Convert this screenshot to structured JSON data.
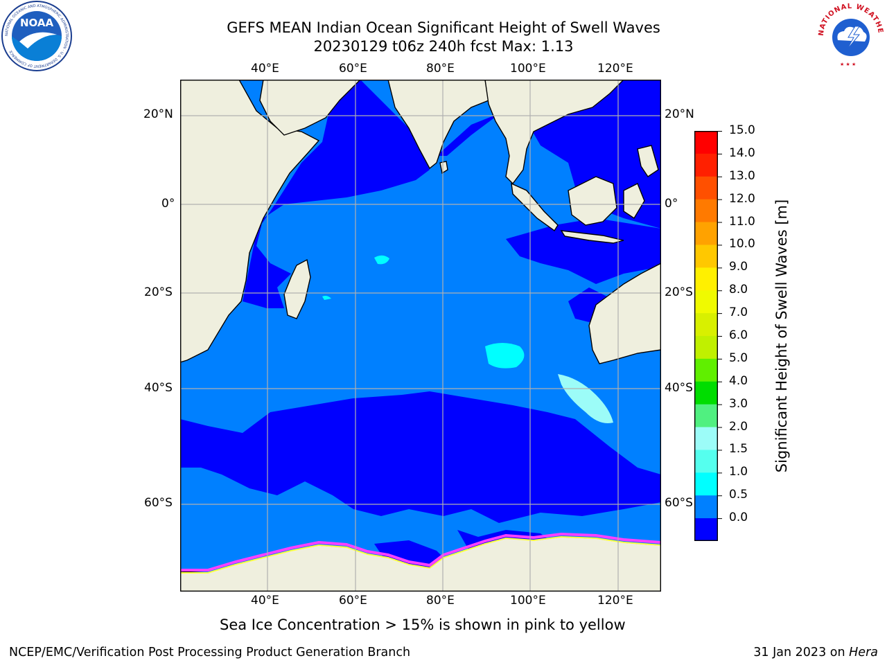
{
  "title": {
    "line1": "GEFS MEAN Indian Ocean Significant Height of Swell Waves",
    "line2": "20230129 t06z 240h fcst    Max: 1.13"
  },
  "map": {
    "lon_ticks": [
      "40°E",
      "60°E",
      "80°E",
      "100°E",
      "120°E"
    ],
    "lat_ticks": [
      "20°N",
      "0°",
      "20°S",
      "40°S",
      "60°S"
    ],
    "colors": {
      "land": "#efefde",
      "band_0_0_5": "#0000ff",
      "band_0_5_1_0": "#0080ff",
      "band_1_0_1_5": "#00ffff",
      "band_1_5_2_0": "#55ffee",
      "band_2_0_3_0": "#9cfcf8",
      "sea_ice": "#ff40ff",
      "grid": "#b0b0b0"
    }
  },
  "colorbar": {
    "label": "Significant Height of Swell Waves [m]",
    "ticks": [
      "15.0",
      "14.0",
      "13.0",
      "12.0",
      "11.0",
      "10.0",
      "9.0",
      "8.0",
      "7.0",
      "6.0",
      "5.0",
      "4.0",
      "3.0",
      "2.0",
      "1.5",
      "1.0",
      "0.5",
      "0.0"
    ],
    "segment_colors": [
      "#ff0000",
      "#ff2000",
      "#ff5000",
      "#ff7a00",
      "#ffa200",
      "#ffc800",
      "#fff000",
      "#f0fa00",
      "#d8f000",
      "#c0f000",
      "#60ef00",
      "#00dd00",
      "#50f080",
      "#9cfcf8",
      "#55ffee",
      "#00ffff",
      "#0080ff",
      "#0000ff"
    ]
  },
  "logos": {
    "noaa_text": "NOAA",
    "noaa_ring": "NATIONAL OCEANIC AND ATMOSPHERIC ADMINISTRATION · U.S. DEPARTMENT OF COMMERCE",
    "nws_ring": "NATIONAL WEATHER SERVICE"
  },
  "caption": "Sea Ice Concentration > 15% is shown in pink to yellow",
  "footer": {
    "left": "NCEP/EMC/Verification Post Processing Product Generation Branch",
    "date": "31 Jan 2023 on ",
    "machine": "Hera"
  }
}
